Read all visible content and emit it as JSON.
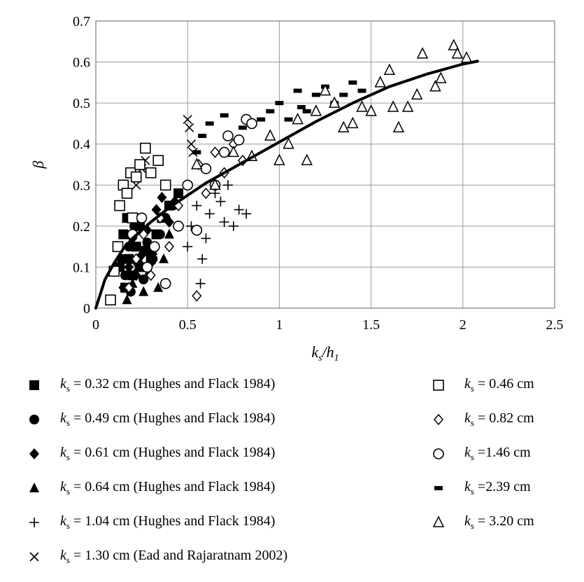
{
  "chart_data": {
    "type": "scatter",
    "title": "",
    "xlabel": "ks/h1",
    "ylabel": "β",
    "xlim": [
      0,
      2.5
    ],
    "ylim": [
      0,
      0.7
    ],
    "xticks": [
      "0",
      "0.5",
      "1",
      "1.5",
      "2",
      "2.5"
    ],
    "yticks": [
      "0",
      "0.1",
      "0.2",
      "0.3",
      "0.4",
      "0.5",
      "0.6",
      "0.7"
    ],
    "grid": true,
    "legend_position": "bottom",
    "fit_line": {
      "x": [
        0,
        0.05,
        0.1,
        0.15,
        0.2,
        0.3,
        0.4,
        0.5,
        0.6,
        0.7,
        0.8,
        1.0,
        1.2,
        1.4,
        1.6,
        1.8,
        2.0,
        2.08
      ],
      "y": [
        0,
        0.07,
        0.11,
        0.145,
        0.17,
        0.21,
        0.245,
        0.275,
        0.305,
        0.33,
        0.355,
        0.405,
        0.455,
        0.5,
        0.54,
        0.57,
        0.595,
        0.602
      ]
    },
    "series": [
      {
        "name": "ks = 0.32 cm (Hughes and Flack 1984)",
        "marker": "square-filled",
        "x": [
          0.13,
          0.15,
          0.16,
          0.17,
          0.18,
          0.2,
          0.22,
          0.24,
          0.25,
          0.27,
          0.3,
          0.33,
          0.36,
          0.4,
          0.45
        ],
        "y": [
          0.1,
          0.18,
          0.05,
          0.22,
          0.12,
          0.08,
          0.15,
          0.2,
          0.1,
          0.14,
          0.12,
          0.18,
          0.22,
          0.25,
          0.28
        ]
      },
      {
        "name": "ks = 0.49 cm (Hughes and Flack 1984)",
        "marker": "circle-filled",
        "x": [
          0.14,
          0.16,
          0.18,
          0.19,
          0.21,
          0.23,
          0.26,
          0.28,
          0.31,
          0.35,
          0.38,
          0.42
        ],
        "y": [
          0.12,
          0.08,
          0.15,
          0.04,
          0.2,
          0.11,
          0.07,
          0.16,
          0.12,
          0.18,
          0.22,
          0.25
        ]
      },
      {
        "name": "ks = 0.61 cm (Hughes and Flack 1984)",
        "marker": "diamond-filled",
        "x": [
          0.15,
          0.18,
          0.2,
          0.22,
          0.25,
          0.28,
          0.3,
          0.33,
          0.36,
          0.4,
          0.43
        ],
        "y": [
          0.05,
          0.1,
          0.17,
          0.08,
          0.13,
          0.19,
          0.11,
          0.24,
          0.27,
          0.21,
          0.26
        ]
      },
      {
        "name": "ks = 0.64 cm (Hughes and Flack 1984)",
        "marker": "triangle-filled",
        "x": [
          0.17,
          0.2,
          0.23,
          0.26,
          0.29,
          0.31,
          0.34,
          0.37,
          0.4
        ],
        "y": [
          0.02,
          0.06,
          0.1,
          0.04,
          0.09,
          0.14,
          0.05,
          0.12,
          0.18
        ]
      },
      {
        "name": "ks = 1.04 cm (Hughes and Flack 1984)",
        "marker": "plus",
        "x": [
          0.5,
          0.52,
          0.55,
          0.57,
          0.58,
          0.6,
          0.62,
          0.65,
          0.68,
          0.7,
          0.72,
          0.75,
          0.78,
          0.82
        ],
        "y": [
          0.15,
          0.2,
          0.25,
          0.06,
          0.12,
          0.17,
          0.23,
          0.28,
          0.26,
          0.21,
          0.3,
          0.2,
          0.24,
          0.23
        ]
      },
      {
        "name": "ks = 1.30 cm (Ead and Rajaratnam 2002)",
        "marker": "cross",
        "x": [
          0.22,
          0.25,
          0.27,
          0.5,
          0.51,
          0.52,
          0.53
        ],
        "y": [
          0.3,
          0.34,
          0.36,
          0.46,
          0.44,
          0.4,
          0.38
        ]
      },
      {
        "name": "ks = 0.46 cm",
        "marker": "square-open",
        "x": [
          0.08,
          0.1,
          0.12,
          0.13,
          0.15,
          0.17,
          0.19,
          0.2,
          0.22,
          0.24,
          0.27,
          0.3,
          0.34,
          0.38
        ],
        "y": [
          0.02,
          0.09,
          0.15,
          0.25,
          0.3,
          0.28,
          0.33,
          0.22,
          0.32,
          0.35,
          0.39,
          0.33,
          0.36,
          0.3
        ]
      },
      {
        "name": "ks = 0.82 cm",
        "marker": "diamond-open",
        "x": [
          0.18,
          0.22,
          0.26,
          0.3,
          0.35,
          0.4,
          0.45,
          0.5,
          0.55,
          0.56,
          0.6,
          0.65,
          0.7,
          0.75,
          0.8
        ],
        "y": [
          0.05,
          0.12,
          0.18,
          0.08,
          0.22,
          0.15,
          0.25,
          0.3,
          0.03,
          0.35,
          0.28,
          0.38,
          0.33,
          0.4,
          0.36
        ]
      },
      {
        "name": "ks =1.46 cm",
        "marker": "circle-open",
        "x": [
          0.2,
          0.25,
          0.28,
          0.32,
          0.38,
          0.45,
          0.5,
          0.55,
          0.6,
          0.65,
          0.7,
          0.72,
          0.78,
          0.82,
          0.85
        ],
        "y": [
          0.18,
          0.22,
          0.1,
          0.15,
          0.06,
          0.2,
          0.3,
          0.19,
          0.34,
          0.3,
          0.38,
          0.42,
          0.41,
          0.46,
          0.45
        ]
      },
      {
        "name": "ks =2.39 cm",
        "marker": "dash",
        "x": [
          0.55,
          0.58,
          0.62,
          0.7,
          0.8,
          0.9,
          0.95,
          1.0,
          1.05,
          1.1,
          1.12,
          1.15,
          1.2,
          1.25,
          1.3,
          1.35,
          1.4,
          1.45
        ],
        "y": [
          0.38,
          0.42,
          0.45,
          0.47,
          0.44,
          0.46,
          0.48,
          0.5,
          0.46,
          0.53,
          0.49,
          0.48,
          0.52,
          0.54,
          0.5,
          0.52,
          0.55,
          0.53
        ]
      },
      {
        "name": "ks = 3.20 cm",
        "marker": "triangle-open",
        "x": [
          0.55,
          0.65,
          0.75,
          0.85,
          0.95,
          1.0,
          1.05,
          1.1,
          1.15,
          1.2,
          1.25,
          1.3,
          1.35,
          1.4,
          1.45,
          1.5,
          1.55,
          1.6,
          1.62,
          1.65,
          1.7,
          1.75,
          1.78,
          1.85,
          1.88,
          1.95,
          1.97,
          2.02
        ],
        "y": [
          0.35,
          0.3,
          0.38,
          0.37,
          0.42,
          0.36,
          0.4,
          0.46,
          0.36,
          0.48,
          0.53,
          0.5,
          0.44,
          0.45,
          0.49,
          0.48,
          0.55,
          0.58,
          0.49,
          0.44,
          0.49,
          0.52,
          0.62,
          0.54,
          0.56,
          0.64,
          0.62,
          0.61
        ]
      }
    ]
  }
}
